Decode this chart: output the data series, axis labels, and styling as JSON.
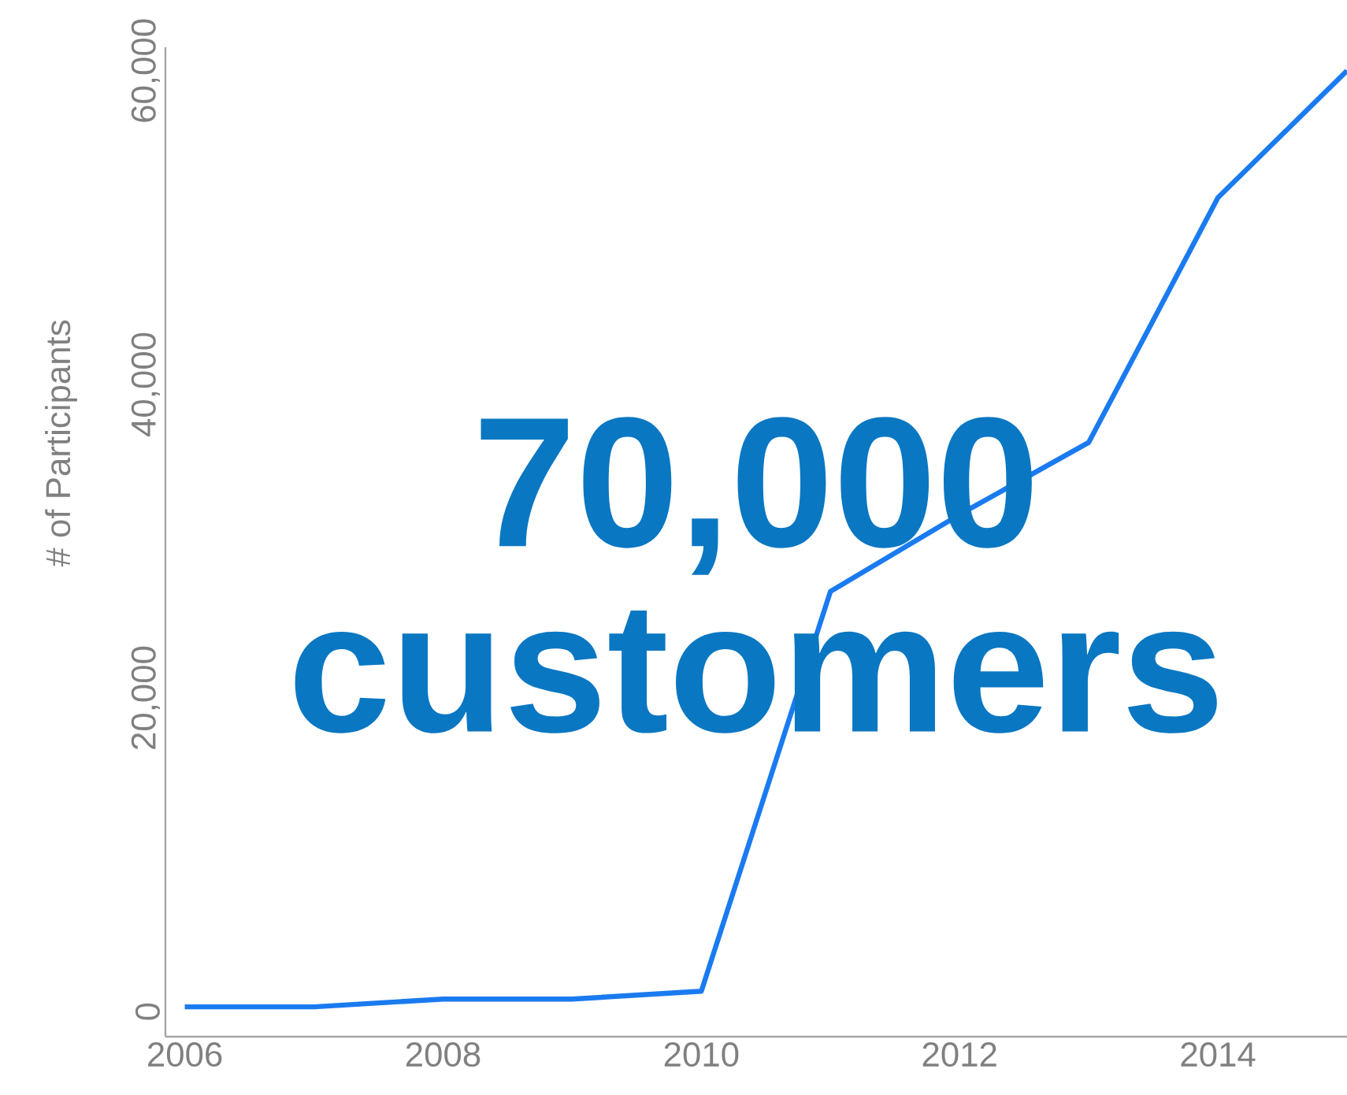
{
  "chart_data": {
    "type": "line",
    "ylabel": "# of Participants",
    "x": [
      2006,
      2007,
      2008,
      2009,
      2010,
      2011,
      2012,
      2013,
      2014,
      2015
    ],
    "series": [
      {
        "color": "#1a7bf0",
        "values": [
          300,
          300,
          800,
          800,
          1300,
          26800,
          31700,
          36300,
          51900,
          60000
        ]
      }
    ],
    "xlim": [
      2005.85,
      2015
    ],
    "ylim": [
      -1600,
      61500
    ],
    "xticks": [
      2006,
      2008,
      2010,
      2012,
      2014
    ],
    "yticks": [
      0,
      {
        "value": 20000,
        "label": "20,000"
      },
      {
        "value": 40000,
        "label": "40,000"
      },
      {
        "value": 60000,
        "label": "60,000"
      }
    ],
    "marker": "none",
    "line_style": "solid",
    "annotations": [
      "**70,000 customers**"
    ]
  }
}
